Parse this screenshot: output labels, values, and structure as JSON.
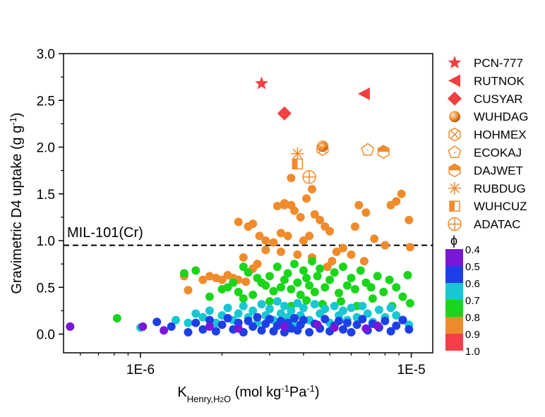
{
  "chart_data": {
    "type": "scatter",
    "title": "",
    "xlabel": {
      "main": "K",
      "sub": "Henry,H",
      "sub2": "2",
      "sub3": "O",
      "units": " (mol kg",
      "units_sup1": "-1",
      "units_mid": "Pa",
      "units_sup2": "-1",
      "units_end": ")"
    },
    "ylabel": {
      "main": "Gravimetric D4 uptake (g g",
      "sup": "-1",
      "end": ")"
    },
    "x_scale": "log",
    "xlim": [
      5.2e-07,
      1.2e-05
    ],
    "ylim": [
      -0.2,
      3.0
    ],
    "x_ticks": [
      {
        "value": 1e-06,
        "label": "1E-6"
      },
      {
        "value": 1e-05,
        "label": "1E-5"
      }
    ],
    "y_ticks": [
      {
        "value": 0.0,
        "label": "0.0"
      },
      {
        "value": 0.5,
        "label": "0.5"
      },
      {
        "value": 1.0,
        "label": "1.0"
      },
      {
        "value": 1.5,
        "label": "1.5"
      },
      {
        "value": 2.0,
        "label": "2.0"
      },
      {
        "value": 2.5,
        "label": "2.5"
      },
      {
        "value": 3.0,
        "label": "3.0"
      }
    ],
    "reference_line": {
      "y": 0.95,
      "label": "MIL-101(Cr)",
      "style": "dashed"
    },
    "colorbar": {
      "title": "ϕ",
      "levels": [
        {
          "label": "0.4",
          "color": "#7a17d6"
        },
        {
          "label": "0.5",
          "color": "#1f3fe6"
        },
        {
          "label": "0.6",
          "color": "#18c7d2"
        },
        {
          "label": "0.7",
          "color": "#1bd51b"
        },
        {
          "label": "0.8",
          "color": "#f08b2c"
        },
        {
          "label": "0.9",
          "color": "#f53e4a"
        },
        {
          "label": "1.0",
          "color": ""
        }
      ]
    },
    "highlighted": [
      {
        "name": "PCN-777",
        "x": 2.8e-06,
        "y": 2.68,
        "marker": "star",
        "color": "#f04040"
      },
      {
        "name": "RUTNOK",
        "x": 6.7e-06,
        "y": 2.57,
        "marker": "triangle-left",
        "color": "#f04040"
      },
      {
        "name": "CUSYAR",
        "x": 3.4e-06,
        "y": 2.36,
        "marker": "diamond",
        "color": "#f04040"
      },
      {
        "name": "WUHDAG",
        "x": 4.7e-06,
        "y": 2.01,
        "marker": "sphere",
        "color": "#f08b2c"
      },
      {
        "name": "HOHMEX",
        "x": 4.7e-06,
        "y": 1.98,
        "marker": "hexagon-x",
        "color": "#f08b2c"
      },
      {
        "name": "ECOKAJ",
        "x": 6.9e-06,
        "y": 1.97,
        "marker": "pentagon",
        "color": "#f08b2c"
      },
      {
        "name": "DAJWET",
        "x": 7.9e-06,
        "y": 1.95,
        "marker": "hexagon-half",
        "color": "#f08b2c"
      },
      {
        "name": "RUBDUG",
        "x": 3.8e-06,
        "y": 1.93,
        "marker": "asterisk",
        "color": "#f08b2c"
      },
      {
        "name": "WUHCUZ",
        "x": 3.8e-06,
        "y": 1.82,
        "marker": "square-half",
        "color": "#f08b2c"
      },
      {
        "name": "ADATAC",
        "x": 4.2e-06,
        "y": 1.68,
        "marker": "circle-plus",
        "color": "#f08b2c"
      }
    ],
    "series": [
      {
        "phi": 0.8,
        "color": "#f08b2c",
        "points": [
          [
            1.45e-06,
            0.62
          ],
          [
            1.5e-06,
            0.47
          ],
          [
            1.7e-06,
            0.58
          ],
          [
            1.8e-06,
            0.62
          ],
          [
            1.9e-06,
            0.6
          ],
          [
            2e-06,
            0.58
          ],
          [
            2.1e-06,
            0.63
          ],
          [
            2.2e-06,
            0.6
          ],
          [
            2.3e-06,
            0.58
          ],
          [
            2.45e-06,
            0.56
          ],
          [
            2.6e-06,
            0.7
          ],
          [
            2.7e-06,
            0.75
          ],
          [
            2.3e-06,
            1.2
          ],
          [
            2.5e-06,
            1.15
          ],
          [
            2.6e-06,
            1.18
          ],
          [
            2.75e-06,
            1.05
          ],
          [
            2.9e-06,
            1.0
          ],
          [
            3.1e-06,
            0.98
          ],
          [
            3.3e-06,
            1.08
          ],
          [
            3.5e-06,
            1.05
          ],
          [
            3.2e-06,
            1.37
          ],
          [
            3.4e-06,
            1.4
          ],
          [
            3.6e-06,
            1.38
          ],
          [
            3.7e-06,
            1.32
          ],
          [
            3.9e-06,
            1.25
          ],
          [
            4e-06,
            1.0
          ],
          [
            4.2e-06,
            1.05
          ],
          [
            4.4e-06,
            1.28
          ],
          [
            4.6e-06,
            1.22
          ],
          [
            4.8e-06,
            1.15
          ],
          [
            5e-06,
            1.1
          ],
          [
            4.3e-06,
            1.55
          ],
          [
            4.1e-06,
            1.45
          ],
          [
            3.6e-06,
            1.67
          ],
          [
            5.3e-06,
            0.88
          ],
          [
            5.6e-06,
            0.92
          ],
          [
            6.2e-06,
            1.15
          ],
          [
            6.4e-06,
            1.38
          ],
          [
            6.8e-06,
            1.3
          ],
          [
            7.3e-06,
            1.02
          ],
          [
            8e-06,
            0.95
          ],
          [
            8.4e-06,
            1.38
          ],
          [
            8.8e-06,
            1.42
          ],
          [
            9.2e-06,
            1.5
          ],
          [
            9.8e-06,
            1.22
          ],
          [
            9.9e-06,
            0.93
          ],
          [
            3.8e-06,
            0.85
          ],
          [
            4.3e-06,
            0.82
          ],
          [
            5.1e-06,
            0.78
          ],
          [
            2.9e-06,
            0.9
          ],
          [
            3.3e-06,
            0.88
          ],
          [
            2.4e-06,
            0.82
          ],
          [
            4.9e-06,
            0.72
          ],
          [
            6e-06,
            0.85
          ],
          [
            6.7e-06,
            0.78
          ],
          [
            3.4e-06,
            1.38
          ]
        ]
      },
      {
        "phi": 0.7,
        "color": "#1bd51b",
        "points": [
          [
            8.2e-07,
            0.17
          ],
          [
            1.45e-06,
            0.65
          ],
          [
            1.6e-06,
            0.68
          ],
          [
            1.8e-06,
            0.4
          ],
          [
            2e-06,
            0.48
          ],
          [
            2.1e-06,
            0.5
          ],
          [
            2.2e-06,
            0.55
          ],
          [
            2.3e-06,
            0.45
          ],
          [
            2.4e-06,
            0.72
          ],
          [
            2.5e-06,
            0.66
          ],
          [
            2.6e-06,
            0.42
          ],
          [
            2.7e-06,
            0.6
          ],
          [
            2.8e-06,
            0.55
          ],
          [
            2.9e-06,
            0.52
          ],
          [
            3e-06,
            0.62
          ],
          [
            3.1e-06,
            0.46
          ],
          [
            3.2e-06,
            0.72
          ],
          [
            3.3e-06,
            0.5
          ],
          [
            3.4e-06,
            0.58
          ],
          [
            3.5e-06,
            0.65
          ],
          [
            3.6e-06,
            0.48
          ],
          [
            3.7e-06,
            0.75
          ],
          [
            3.8e-06,
            0.55
          ],
          [
            3.9e-06,
            0.42
          ],
          [
            4e-06,
            0.68
          ],
          [
            4.1e-06,
            0.6
          ],
          [
            4.2e-06,
            0.52
          ],
          [
            4.3e-06,
            0.78
          ],
          [
            4.4e-06,
            0.45
          ],
          [
            4.5e-06,
            0.62
          ],
          [
            4.6e-06,
            0.7
          ],
          [
            4.8e-06,
            0.5
          ],
          [
            5e-06,
            0.58
          ],
          [
            5.2e-06,
            0.66
          ],
          [
            5.4e-06,
            0.44
          ],
          [
            5.6e-06,
            0.72
          ],
          [
            5.8e-06,
            0.52
          ],
          [
            6e-06,
            0.6
          ],
          [
            6.2e-06,
            0.48
          ],
          [
            6.5e-06,
            0.68
          ],
          [
            6.8e-06,
            0.55
          ],
          [
            7.1e-06,
            0.5
          ],
          [
            7.5e-06,
            0.62
          ],
          [
            7.9e-06,
            0.45
          ],
          [
            8.3e-06,
            0.58
          ],
          [
            8.8e-06,
            0.5
          ],
          [
            9.3e-06,
            0.4
          ],
          [
            9.7e-06,
            0.63
          ],
          [
            9.9e-06,
            0.33
          ],
          [
            3.6e-06,
            0.3
          ],
          [
            4.1e-06,
            0.36
          ],
          [
            4.7e-06,
            0.32
          ],
          [
            5.5e-06,
            0.35
          ],
          [
            6.3e-06,
            0.3
          ],
          [
            7.2e-06,
            0.38
          ],
          [
            8.5e-06,
            0.3
          ],
          [
            2.4e-06,
            0.38
          ],
          [
            3e-06,
            0.35
          ]
        ]
      },
      {
        "phi": 0.6,
        "color": "#18c7d2",
        "points": [
          [
            1e-06,
            0.07
          ],
          [
            1.35e-06,
            0.15
          ],
          [
            1.5e-06,
            0.12
          ],
          [
            1.6e-06,
            0.22
          ],
          [
            1.7e-06,
            0.18
          ],
          [
            1.8e-06,
            0.25
          ],
          [
            1.9e-06,
            0.12
          ],
          [
            2e-06,
            0.2
          ],
          [
            2.1e-06,
            0.28
          ],
          [
            2.2e-06,
            0.15
          ],
          [
            2.3e-06,
            0.22
          ],
          [
            2.4e-06,
            0.3
          ],
          [
            2.5e-06,
            0.18
          ],
          [
            2.6e-06,
            0.25
          ],
          [
            2.7e-06,
            0.12
          ],
          [
            2.8e-06,
            0.32
          ],
          [
            2.9e-06,
            0.2
          ],
          [
            3e-06,
            0.27
          ],
          [
            3.1e-06,
            0.15
          ],
          [
            3.2e-06,
            0.35
          ],
          [
            3.3e-06,
            0.22
          ],
          [
            3.4e-06,
            0.3
          ],
          [
            3.5e-06,
            0.18
          ],
          [
            3.6e-06,
            0.25
          ],
          [
            3.7e-06,
            0.12
          ],
          [
            3.8e-06,
            0.33
          ],
          [
            3.9e-06,
            0.2
          ],
          [
            4e-06,
            0.28
          ],
          [
            4.2e-06,
            0.15
          ],
          [
            4.4e-06,
            0.32
          ],
          [
            4.6e-06,
            0.22
          ],
          [
            4.8e-06,
            0.27
          ],
          [
            5e-06,
            0.12
          ],
          [
            5.2e-06,
            0.3
          ],
          [
            5.4e-06,
            0.2
          ],
          [
            5.6e-06,
            0.25
          ],
          [
            5.8e-06,
            0.15
          ],
          [
            6e-06,
            0.28
          ],
          [
            6.3e-06,
            0.18
          ],
          [
            6.6e-06,
            0.3
          ],
          [
            6.9e-06,
            0.22
          ],
          [
            7.2e-06,
            0.13
          ],
          [
            7.6e-06,
            0.26
          ],
          [
            8e-06,
            0.18
          ],
          [
            8.4e-06,
            0.28
          ],
          [
            8.8e-06,
            0.2
          ],
          [
            9.3e-06,
            0.15
          ],
          [
            9.8e-06,
            0.1
          ]
        ]
      },
      {
        "phi": 0.5,
        "color": "#1f3fe6",
        "points": [
          [
            1.15e-06,
            0.13
          ],
          [
            1.3e-06,
            0.08
          ],
          [
            1.5e-06,
            0.02
          ],
          [
            1.6e-06,
            0.12
          ],
          [
            1.7e-06,
            0.05
          ],
          [
            1.8e-06,
            0.15
          ],
          [
            1.9e-06,
            0.03
          ],
          [
            2e-06,
            0.1
          ],
          [
            2.1e-06,
            0.17
          ],
          [
            2.2e-06,
            0.05
          ],
          [
            2.3e-06,
            0.12
          ],
          [
            2.4e-06,
            0.02
          ],
          [
            2.5e-06,
            0.14
          ],
          [
            2.6e-06,
            0.08
          ],
          [
            2.7e-06,
            0.18
          ],
          [
            2.8e-06,
            0.04
          ],
          [
            2.9e-06,
            0.11
          ],
          [
            3e-06,
            0.16
          ],
          [
            3.1e-06,
            0.03
          ],
          [
            3.2e-06,
            0.09
          ],
          [
            3.3e-06,
            0.14
          ],
          [
            3.4e-06,
            0.02
          ],
          [
            3.5e-06,
            0.12
          ],
          [
            3.6e-06,
            0.06
          ],
          [
            3.7e-06,
            0.17
          ],
          [
            3.8e-06,
            0.04
          ],
          [
            3.9e-06,
            0.1
          ],
          [
            4e-06,
            0.15
          ],
          [
            4.2e-06,
            0.02
          ],
          [
            4.4e-06,
            0.11
          ],
          [
            4.6e-06,
            0.06
          ],
          [
            4.8e-06,
            0.16
          ],
          [
            5e-06,
            0.03
          ],
          [
            5.2e-06,
            0.09
          ],
          [
            5.4e-06,
            0.14
          ],
          [
            5.6e-06,
            0.05
          ],
          [
            5.8e-06,
            0.12
          ],
          [
            6e-06,
            0.02
          ],
          [
            6.3e-06,
            0.1
          ],
          [
            6.6e-06,
            0.16
          ],
          [
            6.9e-06,
            0.04
          ],
          [
            7.2e-06,
            0.11
          ],
          [
            7.6e-06,
            0.07
          ],
          [
            8e-06,
            0.14
          ],
          [
            8.4e-06,
            0.03
          ],
          [
            8.8e-06,
            0.09
          ],
          [
            9.3e-06,
            0.15
          ],
          [
            9.8e-06,
            0.05
          ]
        ]
      },
      {
        "phi": 0.4,
        "color": "#7a17d6",
        "points": [
          [
            5.5e-07,
            0.08
          ],
          [
            1.02e-06,
            0.08
          ],
          [
            1.22e-06,
            0.04
          ],
          [
            1.8e-06,
            0.08
          ],
          [
            2.3e-06,
            0.06
          ],
          [
            3.4e-06,
            0.08
          ],
          [
            4.5e-06,
            0.1
          ],
          [
            5.2e-06,
            0.07
          ],
          [
            6.8e-06,
            0.06
          ],
          [
            7.5e-06,
            0.09
          ]
        ]
      }
    ]
  }
}
